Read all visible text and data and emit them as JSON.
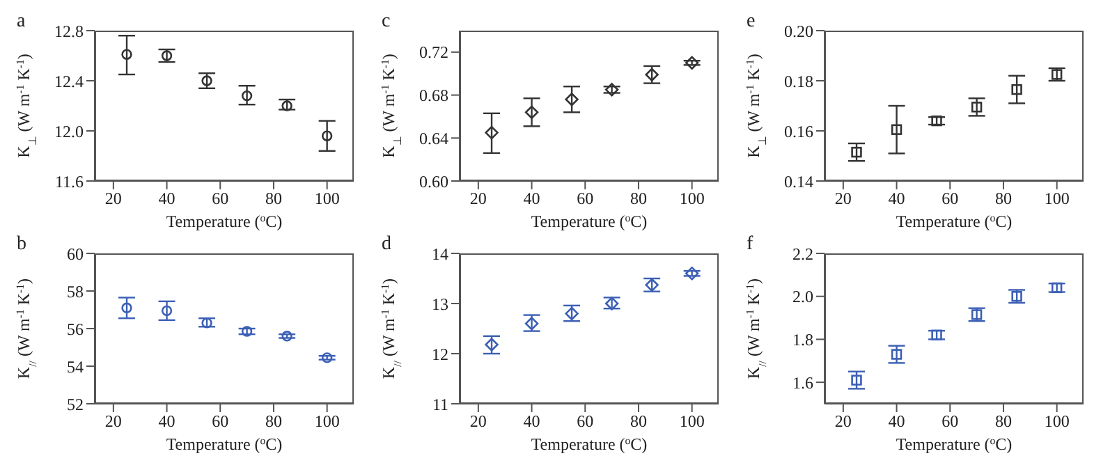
{
  "chart_data": [
    {
      "type": "scatter",
      "title": "a",
      "xlabel": "Temperature ($^{o}$C)",
      "ylabel": "K$_{⊥}$ (W m$^{-1}$ K$^{-1}$)",
      "x": [
        25,
        40,
        55,
        70,
        85,
        100
      ],
      "xlim": [
        13,
        110
      ],
      "xticks": [
        20,
        40,
        60,
        80,
        100
      ],
      "ylim": [
        11.6,
        12.8
      ],
      "yticks": [
        {
          "value": 11.6,
          "label": "11.6"
        },
        {
          "value": 12,
          "label": "12.0"
        },
        {
          "value": 12.4,
          "label": "12.4"
        },
        {
          "value": 12.8,
          "label": "12.8"
        }
      ],
      "marker": "circle",
      "grid": false,
      "legend": false,
      "series": [
        {
          "color": "#333333",
          "values": [
            12.61,
            12.6,
            12.4,
            12.28,
            12.2,
            11.96
          ],
          "errors": [
            [
              12.45,
              12.76
            ],
            [
              12.55,
              12.65
            ],
            [
              12.34,
              12.46
            ],
            [
              12.21,
              12.36
            ],
            [
              12.17,
              12.25
            ],
            [
              11.84,
              12.08
            ]
          ]
        }
      ]
    },
    {
      "type": "scatter",
      "title": "c",
      "xlabel": "Temperature ($^{o}$C)",
      "ylabel": "K$_{⊥}$ (W m$^{-1}$ K$^{-1}$)",
      "x": [
        25,
        40,
        55,
        70,
        85,
        100
      ],
      "xlim": [
        13,
        110
      ],
      "xticks": [
        20,
        40,
        60,
        80,
        100
      ],
      "ylim": [
        0.6,
        0.74
      ],
      "yticks": [
        {
          "value": 0.6,
          "label": "0.60"
        },
        {
          "value": 0.64,
          "label": "0.64"
        },
        {
          "value": 0.68,
          "label": "0.68"
        },
        {
          "value": 0.72,
          "label": "0.72"
        }
      ],
      "marker": "diamond",
      "grid": false,
      "legend": false,
      "series": [
        {
          "color": "#333333",
          "values": [
            0.645,
            0.664,
            0.676,
            0.685,
            0.699,
            0.71
          ],
          "errors": [
            [
              0.626,
              0.663
            ],
            [
              0.651,
              0.677
            ],
            [
              0.664,
              0.688
            ],
            [
              0.682,
              0.688
            ],
            [
              0.691,
              0.707
            ],
            [
              0.708,
              0.712
            ]
          ]
        }
      ]
    },
    {
      "type": "scatter",
      "title": "e",
      "xlabel": "Temperature ($^{o}$C)",
      "ylabel": "K$_{⊥}$ (W m$^{-1}$ K$^{-1}$)",
      "x": [
        25,
        40,
        55,
        70,
        85,
        100
      ],
      "xlim": [
        13,
        110
      ],
      "xticks": [
        20,
        40,
        60,
        80,
        100
      ],
      "ylim": [
        0.14,
        0.2
      ],
      "yticks": [
        {
          "value": 0.14,
          "label": "0.14"
        },
        {
          "value": 0.16,
          "label": "0.16"
        },
        {
          "value": 0.18,
          "label": "0.18"
        },
        {
          "value": 0.2,
          "label": "0.20"
        }
      ],
      "marker": "square",
      "grid": false,
      "legend": false,
      "series": [
        {
          "color": "#333333",
          "values": [
            0.1515,
            0.1605,
            0.164,
            0.1695,
            0.1765,
            0.1825
          ],
          "errors": [
            [
              0.148,
              0.155
            ],
            [
              0.151,
              0.17
            ],
            [
              0.1625,
              0.1655
            ],
            [
              0.166,
              0.173
            ],
            [
              0.171,
              0.182
            ],
            [
              0.18,
              0.185
            ]
          ]
        }
      ]
    },
    {
      "type": "scatter",
      "title": "b",
      "xlabel": "Temperature ($^{o}$C)",
      "ylabel": "K$_{//}$ (W m$^{-1}$ K$^{-1}$)",
      "x": [
        25,
        40,
        55,
        70,
        85,
        100
      ],
      "xlim": [
        13,
        110
      ],
      "xticks": [
        20,
        40,
        60,
        80,
        100
      ],
      "ylim": [
        52,
        60
      ],
      "yticks": [
        52,
        54,
        56,
        58,
        60
      ],
      "marker": "circle",
      "grid": false,
      "legend": false,
      "series": [
        {
          "color": "#3b5fb5",
          "values": [
            57.1,
            56.95,
            56.3,
            55.85,
            55.6,
            54.45
          ],
          "errors": [
            [
              56.55,
              57.65
            ],
            [
              56.45,
              57.45
            ],
            [
              56.1,
              56.55
            ],
            [
              55.7,
              56.0
            ],
            [
              55.5,
              55.7
            ],
            [
              54.35,
              54.55
            ]
          ]
        }
      ]
    },
    {
      "type": "scatter",
      "title": "d",
      "xlabel": "Temperature ($^{o}$C)",
      "ylabel": "K$_{//}$ (W m$^{-1}$ K$^{-1}$)",
      "x": [
        25,
        40,
        55,
        70,
        85,
        100
      ],
      "xlim": [
        13,
        110
      ],
      "xticks": [
        20,
        40,
        60,
        80,
        100
      ],
      "ylim": [
        11,
        14
      ],
      "yticks": [
        11,
        12,
        13,
        14
      ],
      "marker": "diamond",
      "grid": false,
      "legend": false,
      "series": [
        {
          "color": "#3b5fb5",
          "values": [
            12.18,
            12.6,
            12.8,
            13.0,
            13.37,
            13.6
          ],
          "errors": [
            [
              12.0,
              12.35
            ],
            [
              12.45,
              12.77
            ],
            [
              12.65,
              12.96
            ],
            [
              12.9,
              13.12
            ],
            [
              13.24,
              13.5
            ],
            [
              13.55,
              13.65
            ]
          ]
        }
      ]
    },
    {
      "type": "scatter",
      "title": "f",
      "xlabel": "Temperature ($^{o}$C)",
      "ylabel": "K$_{//}$ (W m$^{-1}$ K$^{-1}$)",
      "x": [
        25,
        40,
        55,
        70,
        85,
        100
      ],
      "xlim": [
        13,
        110
      ],
      "xticks": [
        20,
        40,
        60,
        80,
        100
      ],
      "ylim": [
        1.5,
        2.2
      ],
      "yticks": [
        {
          "value": 1.6,
          "label": "1.6"
        },
        {
          "value": 1.8,
          "label": "1.8"
        },
        {
          "value": 2,
          "label": "2.0"
        },
        {
          "value": 2.2,
          "label": "2.2"
        }
      ],
      "marker": "square",
      "grid": false,
      "legend": false,
      "series": [
        {
          "color": "#3b5fb5",
          "values": [
            1.61,
            1.73,
            1.82,
            1.915,
            2.0,
            2.04
          ],
          "errors": [
            [
              1.57,
              1.65
            ],
            [
              1.69,
              1.77
            ],
            [
              1.8,
              1.84
            ],
            [
              1.885,
              1.945
            ],
            [
              1.97,
              2.03
            ],
            [
              2.02,
              2.06
            ]
          ]
        }
      ]
    }
  ]
}
